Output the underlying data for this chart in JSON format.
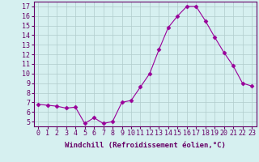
{
  "x": [
    0,
    1,
    2,
    3,
    4,
    5,
    6,
    7,
    8,
    9,
    10,
    11,
    12,
    13,
    14,
    15,
    16,
    17,
    18,
    19,
    20,
    21,
    22,
    23
  ],
  "y": [
    6.8,
    6.7,
    6.6,
    6.4,
    6.5,
    4.8,
    5.4,
    4.8,
    5.0,
    7.0,
    7.2,
    8.6,
    10.0,
    12.5,
    14.8,
    16.0,
    17.0,
    17.0,
    15.5,
    13.8,
    12.2,
    10.8,
    9.0,
    8.7
  ],
  "line_color": "#990099",
  "marker": "D",
  "marker_size": 2.5,
  "bg_color": "#d6f0f0",
  "grid_color": "#b0cccc",
  "xlabel": "Windchill (Refroidissement éolien,°C)",
  "ylabel_ticks": [
    5,
    6,
    7,
    8,
    9,
    10,
    11,
    12,
    13,
    14,
    15,
    16,
    17
  ],
  "ylim": [
    4.5,
    17.5
  ],
  "xlim": [
    -0.5,
    23.5
  ],
  "title_color": "#660066",
  "label_fontsize": 6.5,
  "tick_fontsize": 6.0
}
